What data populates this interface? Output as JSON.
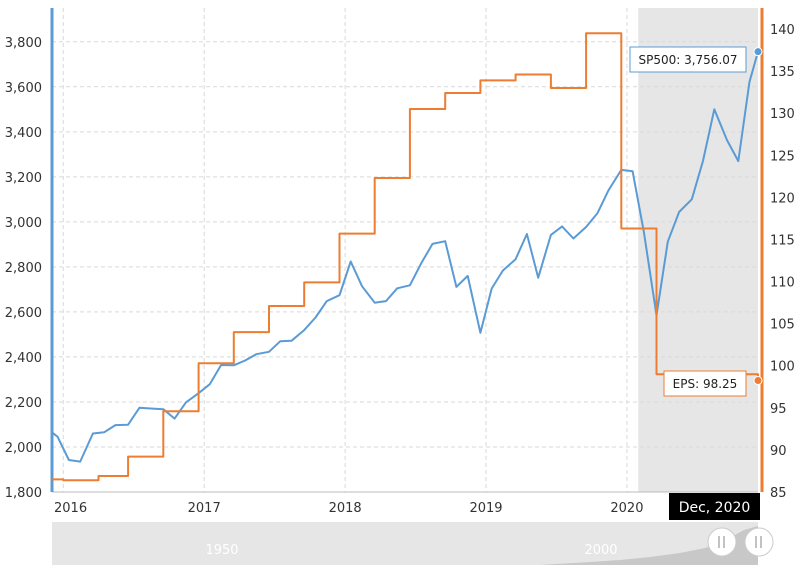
{
  "colors": {
    "sp500": "#5b9bd5",
    "eps": "#ed7d31",
    "grid": "#d9d9d9",
    "shade": "#e6e6e6",
    "navigator_bg": "#e6e6e6",
    "navigator_fill": "#c8c8c8",
    "date_badge": "#000000"
  },
  "tooltips": {
    "sp500": "SP500: 3,756.07",
    "eps": "EPS: 98.25"
  },
  "date_badge": "Dec, 2020",
  "navigator": {
    "labels": [
      "1950",
      "2000"
    ]
  },
  "chart_data": {
    "type": "line",
    "x_range": [
      2015.92,
      2020.93
    ],
    "shaded_range": [
      2020.08,
      2020.93
    ],
    "x_ticks": [
      {
        "label": "2016",
        "value": 2016.0
      },
      {
        "label": "2017",
        "value": 2017.0
      },
      {
        "label": "2018",
        "value": 2018.0
      },
      {
        "label": "2019",
        "value": 2019.0
      },
      {
        "label": "2020",
        "value": 2020.0
      }
    ],
    "y_left": {
      "range": [
        1800,
        3950
      ],
      "ticks": [
        {
          "label": "1,800",
          "value": 1800
        },
        {
          "label": "2,000",
          "value": 2000
        },
        {
          "label": "2,200",
          "value": 2200
        },
        {
          "label": "2,400",
          "value": 2400
        },
        {
          "label": "2,600",
          "value": 2600
        },
        {
          "label": "2,800",
          "value": 2800
        },
        {
          "label": "3,000",
          "value": 3000
        },
        {
          "label": "3,200",
          "value": 3200
        },
        {
          "label": "3,400",
          "value": 3400
        },
        {
          "label": "3,600",
          "value": 3600
        },
        {
          "label": "3,800",
          "value": 3800
        }
      ]
    },
    "y_right": {
      "range": [
        85,
        142.5
      ],
      "ticks": [
        {
          "label": "85",
          "value": 85
        },
        {
          "label": "90",
          "value": 90
        },
        {
          "label": "95",
          "value": 95
        },
        {
          "label": "100",
          "value": 100
        },
        {
          "label": "105",
          "value": 105
        },
        {
          "label": "110",
          "value": 110
        },
        {
          "label": "115",
          "value": 115
        },
        {
          "label": "120",
          "value": 120
        },
        {
          "label": "125",
          "value": 125
        },
        {
          "label": "130",
          "value": 130
        },
        {
          "label": "135",
          "value": 135
        },
        {
          "label": "140",
          "value": 140
        }
      ]
    },
    "series": [
      {
        "name": "SP500",
        "axis": "left",
        "step": false,
        "points": [
          [
            2015.92,
            2065
          ],
          [
            2015.96,
            2045
          ],
          [
            2016.04,
            1942
          ],
          [
            2016.12,
            1935
          ],
          [
            2016.21,
            2060
          ],
          [
            2016.29,
            2065
          ],
          [
            2016.37,
            2097
          ],
          [
            2016.46,
            2099
          ],
          [
            2016.54,
            2174
          ],
          [
            2016.62,
            2171
          ],
          [
            2016.71,
            2168
          ],
          [
            2016.79,
            2126
          ],
          [
            2016.87,
            2198
          ],
          [
            2016.96,
            2239
          ],
          [
            2017.04,
            2279
          ],
          [
            2017.12,
            2364
          ],
          [
            2017.21,
            2363
          ],
          [
            2017.29,
            2384
          ],
          [
            2017.37,
            2412
          ],
          [
            2017.46,
            2423
          ],
          [
            2017.54,
            2470
          ],
          [
            2017.62,
            2472
          ],
          [
            2017.71,
            2519
          ],
          [
            2017.79,
            2575
          ],
          [
            2017.87,
            2648
          ],
          [
            2017.96,
            2674
          ],
          [
            2018.04,
            2824
          ],
          [
            2018.12,
            2714
          ],
          [
            2018.21,
            2641
          ],
          [
            2018.29,
            2648
          ],
          [
            2018.37,
            2705
          ],
          [
            2018.46,
            2718
          ],
          [
            2018.54,
            2816
          ],
          [
            2018.62,
            2902
          ],
          [
            2018.71,
            2914
          ],
          [
            2018.79,
            2711
          ],
          [
            2018.87,
            2760
          ],
          [
            2018.96,
            2507
          ],
          [
            2019.04,
            2704
          ],
          [
            2019.12,
            2784
          ],
          [
            2019.21,
            2834
          ],
          [
            2019.29,
            2946
          ],
          [
            2019.37,
            2752
          ],
          [
            2019.46,
            2942
          ],
          [
            2019.54,
            2980
          ],
          [
            2019.62,
            2926
          ],
          [
            2019.71,
            2977
          ],
          [
            2019.79,
            3038
          ],
          [
            2019.87,
            3141
          ],
          [
            2019.96,
            3231
          ],
          [
            2020.04,
            3225
          ],
          [
            2020.12,
            2954
          ],
          [
            2020.21,
            2585
          ],
          [
            2020.29,
            2912
          ],
          [
            2020.37,
            3044
          ],
          [
            2020.46,
            3100
          ],
          [
            2020.54,
            3271
          ],
          [
            2020.62,
            3500
          ],
          [
            2020.71,
            3363
          ],
          [
            2020.79,
            3270
          ],
          [
            2020.87,
            3622
          ],
          [
            2020.93,
            3756
          ]
        ]
      },
      {
        "name": "EPS",
        "axis": "right",
        "step": true,
        "points": [
          [
            2015.92,
            86.5
          ],
          [
            2016.0,
            86.4
          ],
          [
            2016.25,
            86.9
          ],
          [
            2016.46,
            89.2
          ],
          [
            2016.71,
            94.6
          ],
          [
            2016.96,
            100.3
          ],
          [
            2017.21,
            104.0
          ],
          [
            2017.46,
            107.1
          ],
          [
            2017.71,
            109.9
          ],
          [
            2017.96,
            115.7
          ],
          [
            2018.21,
            122.3
          ],
          [
            2018.46,
            130.5
          ],
          [
            2018.71,
            132.4
          ],
          [
            2018.96,
            133.9
          ],
          [
            2019.21,
            134.6
          ],
          [
            2019.46,
            133.0
          ],
          [
            2019.71,
            139.5
          ],
          [
            2019.96,
            116.3
          ],
          [
            2020.21,
            99.0
          ],
          [
            2020.93,
            98.25
          ]
        ]
      }
    ]
  }
}
